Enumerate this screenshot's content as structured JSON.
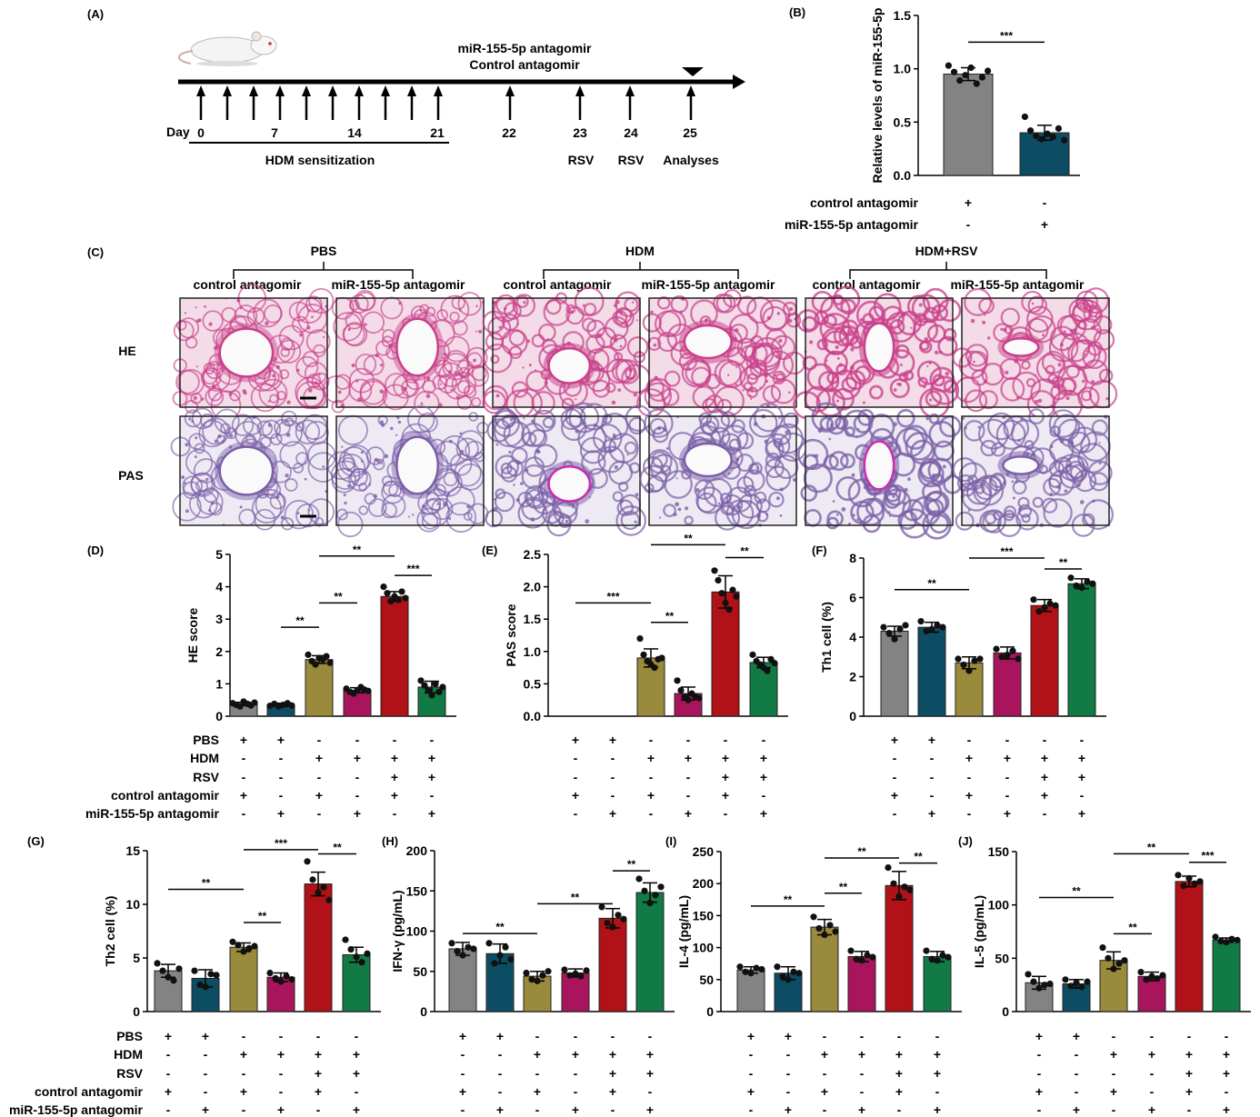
{
  "panel_labels": {
    "A": "(A)",
    "B": "(B)",
    "C": "(C)",
    "D": "(D)",
    "E": "(E)",
    "F": "(F)",
    "G": "(G)",
    "H": "(H)",
    "I": "(I)",
    "J": "(J)"
  },
  "timeline": {
    "treatment_line1": "miR-155-5p antagomir",
    "treatment_line2": "Control antagomir",
    "day_label": "Day",
    "ticks": [
      "0",
      "7",
      "14",
      "21",
      "22",
      "23",
      "24",
      "25"
    ],
    "sensitization_label": "HDM sensitization",
    "events": [
      "RSV",
      "RSV",
      "Analyses"
    ]
  },
  "histology": {
    "groups": [
      "PBS",
      "HDM",
      "HDM+RSV"
    ],
    "subgroups": [
      "control antagomir",
      "miR-155-5p antagomir"
    ],
    "rows": [
      "HE",
      "PAS"
    ],
    "colors": {
      "HE_bg": "#f3dce8",
      "HE_tissue": "#c9408a",
      "PAS_bg": "#eeeaf4",
      "PAS_tissue": "#7a5fa6",
      "PAS_lumen_edge": "#c82fae"
    }
  },
  "colors": {
    "gray": "#838383",
    "blue": "#0d4d63",
    "olive": "#9a8a3c",
    "magenta": "#a8155c",
    "red": "#b01217",
    "green": "#127a45"
  },
  "condition_labels": [
    "PBS",
    "HDM",
    "RSV",
    "control antagomir",
    "miR-155-5p antagomir"
  ],
  "chart_data": [
    {
      "id": "B",
      "type": "bar",
      "ylabel": "Relative levels of miR-155-5p",
      "ylim": [
        0,
        1.5
      ],
      "yticks": [
        "0.0",
        "0.5",
        "1.0",
        "1.5"
      ],
      "values": [
        0.95,
        0.4
      ],
      "errors": [
        0.06,
        0.07
      ],
      "colors": [
        "gray",
        "blue"
      ],
      "points": [
        [
          1.03,
          0.97,
          0.89,
          0.94,
          1.01,
          0.86,
          0.92,
          0.98
        ],
        [
          0.55,
          0.42,
          0.37,
          0.34,
          0.39,
          0.36,
          0.44,
          0.33
        ]
      ],
      "conditions": [
        [
          "control antagomir",
          [
            "+",
            "-"
          ]
        ],
        [
          "miR-155-5p antagomir",
          [
            "-",
            "+"
          ]
        ]
      ],
      "sig": [
        {
          "from": 0,
          "to": 1,
          "label": "***",
          "y": 1.25
        }
      ]
    },
    {
      "id": "D",
      "type": "bar",
      "ylabel": "HE score",
      "ylim": [
        0,
        5
      ],
      "yticks": [
        "0",
        "1",
        "2",
        "3",
        "4",
        "5"
      ],
      "values": [
        0.38,
        0.35,
        1.75,
        0.8,
        3.7,
        0.9
      ],
      "errors": [
        0.05,
        0.05,
        0.12,
        0.08,
        0.15,
        0.18
      ],
      "colors": [
        "gray",
        "blue",
        "olive",
        "magenta",
        "red",
        "green"
      ],
      "points": [
        [
          0.4,
          0.35,
          0.3,
          0.45,
          0.38,
          0.33,
          0.42
        ],
        [
          0.32,
          0.38,
          0.3,
          0.35,
          0.4,
          0.33
        ],
        [
          1.9,
          1.7,
          1.6,
          1.8,
          1.75,
          1.85,
          1.65
        ],
        [
          0.85,
          0.75,
          0.7,
          0.8,
          0.9,
          0.82,
          0.78
        ],
        [
          4.0,
          3.8,
          3.55,
          3.7,
          3.6,
          3.85,
          3.65
        ],
        [
          1.1,
          0.95,
          0.8,
          0.65,
          1.0,
          0.75,
          0.9
        ]
      ],
      "conditions": [
        [
          "PBS",
          [
            "+",
            "+",
            "-",
            "-",
            "-",
            "-"
          ]
        ],
        [
          "HDM",
          [
            "-",
            "-",
            "+",
            "+",
            "+",
            "+"
          ]
        ],
        [
          "RSV",
          [
            "-",
            "-",
            "-",
            "-",
            "+",
            "+"
          ]
        ],
        [
          "control antagomir",
          [
            "+",
            "-",
            "+",
            "-",
            "+",
            "-"
          ]
        ],
        [
          "miR-155-5p antagomir",
          [
            "-",
            "+",
            "-",
            "+",
            "-",
            "+"
          ]
        ]
      ],
      "sig": [
        {
          "from": 1,
          "to": 2,
          "label": "**",
          "y": 2.75
        },
        {
          "from": 2,
          "to": 3,
          "label": "**",
          "y": 3.5
        },
        {
          "from": 2,
          "to": 4,
          "label": "**",
          "y": 4.95
        },
        {
          "from": 4,
          "to": 5,
          "label": "***",
          "y": 4.35
        }
      ]
    },
    {
      "id": "E",
      "type": "bar",
      "ylabel": "PAS score",
      "ylim": [
        0,
        2.5
      ],
      "yticks": [
        "0.0",
        "0.5",
        "1.0",
        "1.5",
        "2.0",
        "2.5"
      ],
      "values": [
        0,
        0,
        0.9,
        0.35,
        1.92,
        0.83
      ],
      "errors": [
        0,
        0,
        0.14,
        0.1,
        0.25,
        0.08
      ],
      "colors": [
        "gray",
        "blue",
        "olive",
        "magenta",
        "red",
        "green"
      ],
      "points": [
        [],
        [],
        [
          1.2,
          0.95,
          0.85,
          0.8,
          0.75,
          0.88,
          0.9
        ],
        [
          0.55,
          0.4,
          0.3,
          0.25,
          0.35,
          0.3,
          0.28
        ],
        [
          2.25,
          2.1,
          1.9,
          1.75,
          1.65,
          1.95,
          1.85
        ],
        [
          0.95,
          0.85,
          0.8,
          0.75,
          0.7,
          0.88,
          0.82
        ]
      ],
      "conditions": [
        [
          "PBS",
          [
            "+",
            "+",
            "-",
            "-",
            "-",
            "-"
          ]
        ],
        [
          "HDM",
          [
            "-",
            "-",
            "+",
            "+",
            "+",
            "+"
          ]
        ],
        [
          "RSV",
          [
            "-",
            "-",
            "-",
            "-",
            "+",
            "+"
          ]
        ],
        [
          "control antagomir",
          [
            "+",
            "-",
            "+",
            "-",
            "+",
            "-"
          ]
        ],
        [
          "miR-155-5p antagomir",
          [
            "-",
            "+",
            "-",
            "+",
            "-",
            "+"
          ]
        ]
      ],
      "sig": [
        {
          "from": 0,
          "to": 2,
          "label": "***",
          "y": 1.75
        },
        {
          "from": 2,
          "to": 3,
          "label": "**",
          "y": 1.45
        },
        {
          "from": 2,
          "to": 4,
          "label": "**",
          "y": 2.65
        },
        {
          "from": 4,
          "to": 5,
          "label": "**",
          "y": 2.45
        }
      ]
    },
    {
      "id": "F",
      "type": "bar",
      "ylabel": "Th1 cell (%)",
      "ylim": [
        0,
        8
      ],
      "yticks": [
        "0",
        "2",
        "4",
        "6",
        "8"
      ],
      "values": [
        4.3,
        4.5,
        2.7,
        3.2,
        5.6,
        6.7
      ],
      "errors": [
        0.25,
        0.25,
        0.3,
        0.3,
        0.3,
        0.25
      ],
      "colors": [
        "gray",
        "blue",
        "olive",
        "magenta",
        "red",
        "green"
      ],
      "points": [
        [
          4.5,
          4.2,
          3.9,
          4.4,
          4.6
        ],
        [
          4.8,
          4.3,
          4.4,
          4.6,
          4.5
        ],
        [
          2.9,
          2.6,
          2.3,
          2.8,
          2.9
        ],
        [
          3.4,
          3.0,
          3.1,
          3.3,
          2.9
        ],
        [
          5.9,
          5.3,
          5.5,
          5.7,
          5.6
        ],
        [
          7.0,
          6.6,
          6.5,
          6.8,
          6.7
        ]
      ],
      "conditions": [
        [
          "PBS",
          [
            "+",
            "+",
            "-",
            "-",
            "-",
            "-"
          ]
        ],
        [
          "HDM",
          [
            "-",
            "-",
            "+",
            "+",
            "+",
            "+"
          ]
        ],
        [
          "RSV",
          [
            "-",
            "-",
            "-",
            "-",
            "+",
            "+"
          ]
        ],
        [
          "control antagomir",
          [
            "+",
            "-",
            "+",
            "-",
            "+",
            "-"
          ]
        ],
        [
          "miR-155-5p antagomir",
          [
            "-",
            "+",
            "-",
            "+",
            "-",
            "+"
          ]
        ]
      ],
      "sig": [
        {
          "from": 0,
          "to": 2,
          "label": "**",
          "y": 6.4
        },
        {
          "from": 2,
          "to": 4,
          "label": "***",
          "y": 8.0
        },
        {
          "from": 4,
          "to": 5,
          "label": "**",
          "y": 7.45
        }
      ]
    },
    {
      "id": "G",
      "type": "bar",
      "ylabel": "Th2 cell (%)",
      "ylim": [
        0,
        15
      ],
      "yticks": [
        "0",
        "5",
        "10",
        "15"
      ],
      "values": [
        3.8,
        3.1,
        6.0,
        3.2,
        11.9,
        5.3
      ],
      "errors": [
        0.6,
        0.8,
        0.4,
        0.4,
        1.1,
        0.7
      ],
      "colors": [
        "gray",
        "blue",
        "olive",
        "magenta",
        "red",
        "green"
      ],
      "points": [
        [
          4.5,
          3.8,
          3.2,
          2.9,
          4.0
        ],
        [
          3.8,
          2.5,
          2.3,
          3.5,
          3.4
        ],
        [
          6.5,
          6.2,
          5.6,
          5.9,
          6.1
        ],
        [
          3.6,
          3.1,
          2.8,
          3.3,
          3.0
        ],
        [
          14.0,
          12.3,
          11.1,
          11.6,
          10.4
        ],
        [
          6.7,
          5.8,
          5.1,
          4.6,
          5.4
        ]
      ],
      "conditions": [
        [
          "PBS",
          [
            "+",
            "+",
            "-",
            "-",
            "-",
            "-"
          ]
        ],
        [
          "HDM",
          [
            "-",
            "-",
            "+",
            "+",
            "+",
            "+"
          ]
        ],
        [
          "RSV",
          [
            "-",
            "-",
            "-",
            "-",
            "+",
            "+"
          ]
        ],
        [
          "control antagomir",
          [
            "+",
            "-",
            "+",
            "-",
            "+",
            "-"
          ]
        ],
        [
          "miR-155-5p antagomir",
          [
            "-",
            "+",
            "-",
            "+",
            "-",
            "+"
          ]
        ]
      ],
      "sig": [
        {
          "from": 0,
          "to": 2,
          "label": "**",
          "y": 11.4
        },
        {
          "from": 2,
          "to": 3,
          "label": "**",
          "y": 8.3
        },
        {
          "from": 2,
          "to": 4,
          "label": "***",
          "y": 15.1
        },
        {
          "from": 4,
          "to": 5,
          "label": "**",
          "y": 14.7
        }
      ]
    },
    {
      "id": "H",
      "type": "bar",
      "ylabel": "IFN-γ (pg/mL)",
      "ylim": [
        0,
        200
      ],
      "yticks": [
        "0",
        "50",
        "100",
        "150",
        "200"
      ],
      "values": [
        78,
        72,
        44,
        48,
        116,
        148
      ],
      "errors": [
        8,
        12,
        6,
        5,
        12,
        12
      ],
      "colors": [
        "gray",
        "blue",
        "olive",
        "magenta",
        "red",
        "green"
      ],
      "points": [
        [
          85,
          75,
          70,
          80,
          78
        ],
        [
          85,
          60,
          70,
          80,
          65
        ],
        [
          48,
          40,
          38,
          45,
          50
        ],
        [
          52,
          45,
          47,
          44,
          51
        ],
        [
          130,
          110,
          105,
          120,
          115
        ],
        [
          165,
          150,
          135,
          145,
          155
        ]
      ],
      "conditions": [
        [
          "PBS",
          [
            "+",
            "+",
            "-",
            "-",
            "-",
            "-"
          ]
        ],
        [
          "HDM",
          [
            "-",
            "-",
            "+",
            "+",
            "+",
            "+"
          ]
        ],
        [
          "RSV",
          [
            "-",
            "-",
            "-",
            "-",
            "+",
            "+"
          ]
        ],
        [
          "control antagomir",
          [
            "+",
            "-",
            "+",
            "-",
            "+",
            "-"
          ]
        ],
        [
          "miR-155-5p antagomir",
          [
            "-",
            "+",
            "-",
            "+",
            "-",
            "+"
          ]
        ]
      ],
      "sig": [
        {
          "from": 0,
          "to": 2,
          "label": "**",
          "y": 97
        },
        {
          "from": 2,
          "to": 4,
          "label": "**",
          "y": 134
        },
        {
          "from": 4,
          "to": 5,
          "label": "**",
          "y": 175
        }
      ]
    },
    {
      "id": "I",
      "type": "bar",
      "ylabel": "IL-4 (pg/mL)",
      "ylim": [
        0,
        250
      ],
      "yticks": [
        "0",
        "50",
        "100",
        "150",
        "200",
        "250"
      ],
      "values": [
        65,
        60,
        132,
        86,
        197,
        86
      ],
      "errors": [
        5,
        10,
        12,
        8,
        22,
        8
      ],
      "colors": [
        "gray",
        "blue",
        "olive",
        "magenta",
        "red",
        "green"
      ],
      "points": [
        [
          70,
          62,
          60,
          68,
          66
        ],
        [
          70,
          55,
          50,
          62,
          60
        ],
        [
          148,
          130,
          120,
          135,
          125
        ],
        [
          95,
          82,
          80,
          88,
          85
        ],
        [
          225,
          200,
          180,
          195,
          190
        ],
        [
          95,
          82,
          80,
          88,
          85
        ]
      ],
      "conditions": [
        [
          "PBS",
          [
            "+",
            "+",
            "-",
            "-",
            "-",
            "-"
          ]
        ],
        [
          "HDM",
          [
            "-",
            "-",
            "+",
            "+",
            "+",
            "+"
          ]
        ],
        [
          "RSV",
          [
            "-",
            "-",
            "-",
            "-",
            "+",
            "+"
          ]
        ],
        [
          "control antagomir",
          [
            "+",
            "-",
            "+",
            "-",
            "+",
            "-"
          ]
        ],
        [
          "miR-155-5p antagomir",
          [
            "-",
            "+",
            "-",
            "+",
            "-",
            "+"
          ]
        ]
      ],
      "sig": [
        {
          "from": 0,
          "to": 2,
          "label": "**",
          "y": 165
        },
        {
          "from": 2,
          "to": 3,
          "label": "**",
          "y": 185
        },
        {
          "from": 2,
          "to": 4,
          "label": "**",
          "y": 240
        },
        {
          "from": 4,
          "to": 5,
          "label": "**",
          "y": 232
        }
      ]
    },
    {
      "id": "J",
      "type": "bar",
      "ylabel": "IL-5 (pg/mL)",
      "ylim": [
        0,
        150
      ],
      "yticks": [
        "0",
        "50",
        "100",
        "150"
      ],
      "values": [
        27,
        26,
        48,
        33,
        122,
        67
      ],
      "errors": [
        6,
        4,
        8,
        4,
        5,
        2
      ],
      "colors": [
        "gray",
        "blue",
        "olive",
        "magenta",
        "red",
        "green"
      ],
      "points": [
        [
          35,
          28,
          22,
          25,
          26
        ],
        [
          30,
          24,
          27,
          23,
          28
        ],
        [
          60,
          50,
          40,
          45,
          48
        ],
        [
          37,
          30,
          33,
          31,
          34
        ],
        [
          128,
          118,
          125,
          120,
          122
        ],
        [
          70,
          66,
          65,
          68,
          67
        ]
      ],
      "conditions": [
        [
          "PBS",
          [
            "+",
            "+",
            "-",
            "-",
            "-",
            "-"
          ]
        ],
        [
          "HDM",
          [
            "-",
            "-",
            "+",
            "+",
            "+",
            "+"
          ]
        ],
        [
          "RSV",
          [
            "-",
            "-",
            "-",
            "-",
            "+",
            "+"
          ]
        ],
        [
          "control antagomir",
          [
            "+",
            "-",
            "+",
            "-",
            "+",
            "-"
          ]
        ],
        [
          "miR-155-5p antagomir",
          [
            "-",
            "+",
            "-",
            "+",
            "-",
            "+"
          ]
        ]
      ],
      "sig": [
        {
          "from": 0,
          "to": 2,
          "label": "**",
          "y": 107
        },
        {
          "from": 2,
          "to": 3,
          "label": "**",
          "y": 73
        },
        {
          "from": 2,
          "to": 4,
          "label": "**",
          "y": 148
        },
        {
          "from": 4,
          "to": 5,
          "label": "***",
          "y": 140
        }
      ]
    }
  ]
}
